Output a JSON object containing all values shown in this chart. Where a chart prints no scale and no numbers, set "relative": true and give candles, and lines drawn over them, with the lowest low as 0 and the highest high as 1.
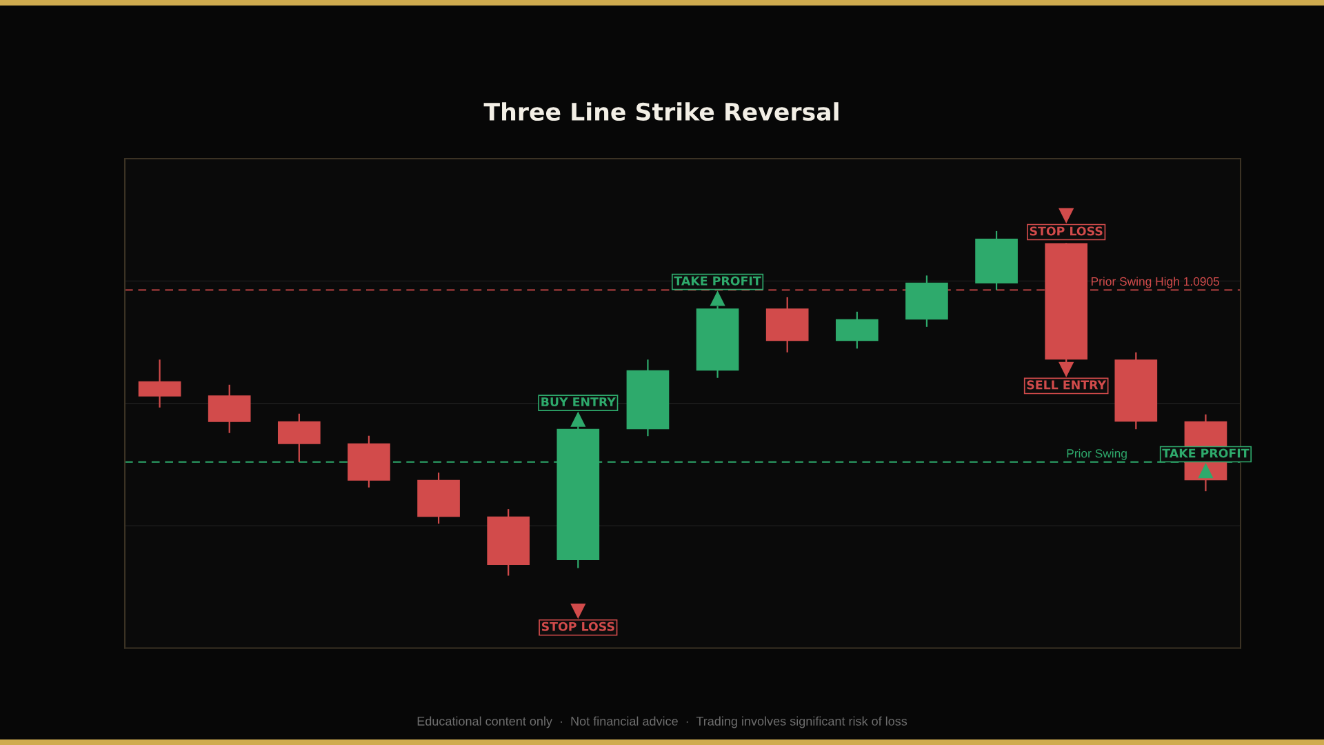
{
  "chart_data": {
    "type": "candlestick",
    "title": "Three Line Strike Reversal",
    "categories": [
      null,
      null,
      null,
      null,
      null,
      null,
      null,
      null,
      null,
      null,
      null,
      null,
      null,
      null,
      null,
      null
    ],
    "ohlc": [
      [
        0.564,
        0.627,
        0.488,
        0.52
      ],
      [
        0.523,
        0.554,
        0.414,
        0.446
      ],
      [
        0.448,
        0.47,
        0.33,
        0.382
      ],
      [
        0.384,
        0.406,
        0.256,
        0.276
      ],
      [
        0.278,
        0.299,
        0.151,
        0.171
      ],
      [
        0.172,
        0.193,
        0.0,
        0.031
      ],
      [
        0.045,
        0.433,
        0.022,
        0.426
      ],
      [
        0.425,
        0.627,
        0.405,
        0.596
      ],
      [
        0.595,
        0.782,
        0.574,
        0.775
      ],
      [
        0.775,
        0.808,
        0.648,
        0.681
      ],
      [
        0.681,
        0.766,
        0.659,
        0.744
      ],
      [
        0.743,
        0.871,
        0.722,
        0.85
      ],
      [
        0.848,
        1.0,
        0.829,
        0.978
      ],
      [
        0.965,
        0.965,
        0.615,
        0.627
      ],
      [
        0.627,
        0.648,
        0.425,
        0.447
      ],
      [
        0.448,
        0.468,
        0.245,
        0.277
      ]
    ],
    "colors": [
      "#d24b4b",
      "#d24b4b",
      "#d24b4b",
      "#d24b4b",
      "#d24b4b",
      "#d24b4b",
      "#2eaa6c",
      "#2eaa6c",
      "#2eaa6c",
      "#d24b4b",
      "#2eaa6c",
      "#2eaa6c",
      "#2eaa6c",
      "#d24b4b",
      "#d24b4b",
      "#d24b4b"
    ],
    "relative": true,
    "series": [
      {
        "name": "BUY ENTRY",
        "type": "scatter",
        "color": "#2eaa6c",
        "marker": "triangle",
        "values": [
          null,
          null,
          null,
          null,
          null,
          null,
          0.454,
          null,
          null,
          null,
          null,
          null,
          null,
          null,
          null,
          null
        ]
      },
      {
        "name": "TAKE PROFIT",
        "type": "scatter",
        "color": "#2eaa6c",
        "marker": "triangle",
        "values": [
          null,
          null,
          null,
          null,
          null,
          null,
          null,
          null,
          0.805,
          null,
          null,
          null,
          null,
          null,
          null,
          0.305
        ]
      },
      {
        "name": "SELL ENTRY",
        "type": "scatter",
        "color": "#d24b4b",
        "marker": "triangle_down",
        "values": [
          null,
          null,
          null,
          null,
          null,
          null,
          null,
          null,
          null,
          null,
          null,
          null,
          null,
          0.598,
          null,
          null
        ]
      }
    ],
    "ref_lines": [
      {
        "axis": "y",
        "value": 0.829,
        "label": "Prior Swing High 1.0905",
        "color": "#d24b4b",
        "line_style": "dashed"
      },
      {
        "axis": "y",
        "value": 0.33,
        "label": "Prior Swing",
        "color": "#2eaa6c",
        "line_style": "dashed"
      }
    ],
    "grid": "y",
    "tick_labels": false,
    "annotations": [
      "Educational content only  ·  Not financial advice  ·  Trading involves significant risk of loss",
      "STOP LOSS",
      "STOP LOSS"
    ]
  }
}
